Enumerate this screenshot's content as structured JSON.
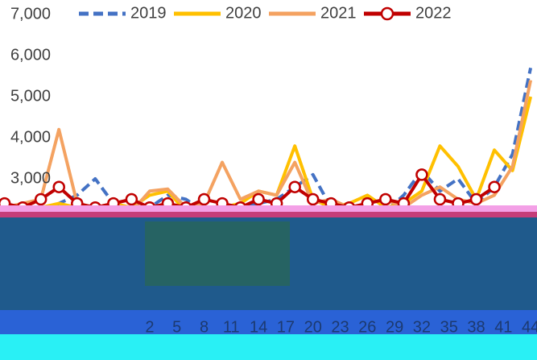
{
  "chart_data": {
    "type": "line",
    "x": [
      -14,
      -12,
      -10,
      -8,
      -6,
      -4,
      -2,
      0,
      2,
      4,
      6,
      8,
      10,
      12,
      14,
      16,
      18,
      20,
      22,
      24,
      26,
      28,
      30,
      32,
      34,
      36,
      38,
      40,
      42,
      44
    ],
    "series": [
      {
        "name": "2019",
        "color": "#4472c4",
        "dash": true,
        "markers": false,
        "values": [
          2200,
          2300,
          2100,
          2400,
          2600,
          3000,
          2400,
          2000,
          2300,
          2600,
          2500,
          2200,
          2100,
          2300,
          2400,
          2500,
          2800,
          3100,
          2300,
          2200,
          2400,
          2200,
          2600,
          3200,
          2700,
          3000,
          2400,
          2800,
          3600,
          5700
        ]
      },
      {
        "name": "2020",
        "color": "#ffc000",
        "dash": false,
        "markers": false,
        "values": [
          2100,
          2200,
          2300,
          2400,
          2300,
          2200,
          2400,
          2300,
          2600,
          2700,
          2200,
          2100,
          2300,
          2400,
          2700,
          2600,
          3800,
          2500,
          2300,
          2400,
          2600,
          2300,
          2400,
          2700,
          3800,
          3300,
          2500,
          3700,
          3200,
          5000
        ]
      },
      {
        "name": "2021",
        "color": "#f4a261",
        "dash": false,
        "markers": false,
        "values": [
          2300,
          2400,
          2500,
          4200,
          2400,
          2300,
          2400,
          2200,
          2700,
          2750,
          2300,
          2400,
          3400,
          2500,
          2700,
          2600,
          3400,
          2400,
          2500,
          2300,
          2400,
          2500,
          2300,
          2600,
          2800,
          2500,
          2400,
          2600,
          3300,
          5400
        ]
      },
      {
        "name": "2022",
        "color": "#c00000",
        "dash": false,
        "markers": true,
        "values": [
          2400,
          2300,
          2500,
          2800,
          2400,
          2300,
          2400,
          2500,
          2300,
          2400,
          2300,
          2500,
          2400,
          2300,
          2500,
          2400,
          2800,
          2500,
          2400,
          2300,
          2400,
          2500,
          2400,
          3100,
          2500,
          2400,
          2500,
          2800,
          null,
          null
        ]
      }
    ],
    "xlim": [
      -14.5,
      44.7
    ],
    "xticks": [
      2,
      5,
      8,
      11,
      14,
      17,
      20,
      23,
      26,
      29,
      32,
      35,
      38,
      41,
      44
    ],
    "ylim": [
      2000,
      7000
    ],
    "yticks": [
      {
        "value": 3000,
        "label": "3,000"
      },
      {
        "value": 4000,
        "label": "4,000"
      },
      {
        "value": 5000,
        "label": "5,000"
      },
      {
        "value": 6000,
        "label": "6,000"
      },
      {
        "value": 7000,
        "label": "7,000"
      }
    ]
  }
}
